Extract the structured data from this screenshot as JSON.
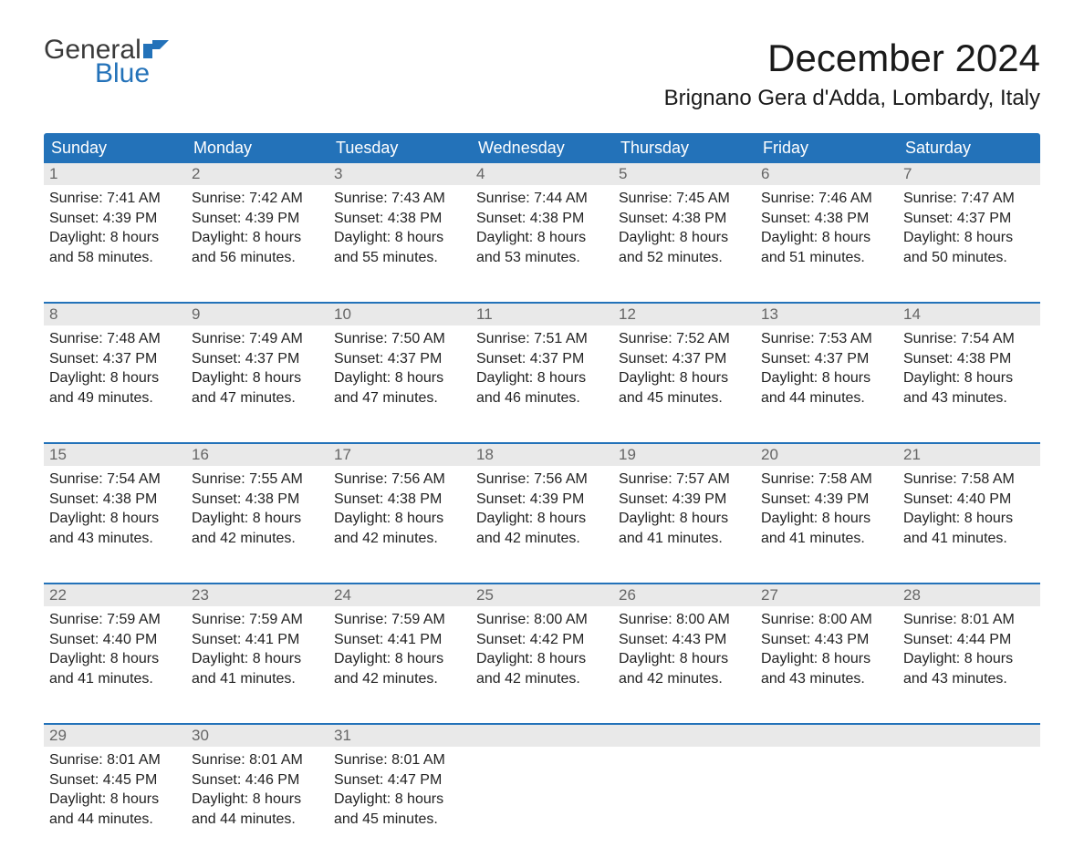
{
  "logo": {
    "general": "General",
    "blue": "Blue"
  },
  "title": "December 2024",
  "location": "Brignano Gera d'Adda, Lombardy, Italy",
  "colors": {
    "header_bg": "#2372b9",
    "header_text": "#ffffff",
    "daynum_bg": "#e9e9e9",
    "daynum_text": "#666666",
    "body_text": "#222222",
    "week_border": "#2372b9",
    "page_bg": "#ffffff",
    "logo_general": "#3a3a3a",
    "logo_blue": "#2372b9"
  },
  "typography": {
    "title_fontsize": 42,
    "location_fontsize": 24,
    "dayhead_fontsize": 18,
    "daynum_fontsize": 17,
    "cell_fontsize": 16,
    "logo_fontsize": 30
  },
  "day_headers": [
    "Sunday",
    "Monday",
    "Tuesday",
    "Wednesday",
    "Thursday",
    "Friday",
    "Saturday"
  ],
  "weeks": [
    [
      {
        "day": "1",
        "sunrise": "Sunrise: 7:41 AM",
        "sunset": "Sunset: 4:39 PM",
        "d1": "Daylight: 8 hours",
        "d2": "and 58 minutes."
      },
      {
        "day": "2",
        "sunrise": "Sunrise: 7:42 AM",
        "sunset": "Sunset: 4:39 PM",
        "d1": "Daylight: 8 hours",
        "d2": "and 56 minutes."
      },
      {
        "day": "3",
        "sunrise": "Sunrise: 7:43 AM",
        "sunset": "Sunset: 4:38 PM",
        "d1": "Daylight: 8 hours",
        "d2": "and 55 minutes."
      },
      {
        "day": "4",
        "sunrise": "Sunrise: 7:44 AM",
        "sunset": "Sunset: 4:38 PM",
        "d1": "Daylight: 8 hours",
        "d2": "and 53 minutes."
      },
      {
        "day": "5",
        "sunrise": "Sunrise: 7:45 AM",
        "sunset": "Sunset: 4:38 PM",
        "d1": "Daylight: 8 hours",
        "d2": "and 52 minutes."
      },
      {
        "day": "6",
        "sunrise": "Sunrise: 7:46 AM",
        "sunset": "Sunset: 4:38 PM",
        "d1": "Daylight: 8 hours",
        "d2": "and 51 minutes."
      },
      {
        "day": "7",
        "sunrise": "Sunrise: 7:47 AM",
        "sunset": "Sunset: 4:37 PM",
        "d1": "Daylight: 8 hours",
        "d2": "and 50 minutes."
      }
    ],
    [
      {
        "day": "8",
        "sunrise": "Sunrise: 7:48 AM",
        "sunset": "Sunset: 4:37 PM",
        "d1": "Daylight: 8 hours",
        "d2": "and 49 minutes."
      },
      {
        "day": "9",
        "sunrise": "Sunrise: 7:49 AM",
        "sunset": "Sunset: 4:37 PM",
        "d1": "Daylight: 8 hours",
        "d2": "and 47 minutes."
      },
      {
        "day": "10",
        "sunrise": "Sunrise: 7:50 AM",
        "sunset": "Sunset: 4:37 PM",
        "d1": "Daylight: 8 hours",
        "d2": "and 47 minutes."
      },
      {
        "day": "11",
        "sunrise": "Sunrise: 7:51 AM",
        "sunset": "Sunset: 4:37 PM",
        "d1": "Daylight: 8 hours",
        "d2": "and 46 minutes."
      },
      {
        "day": "12",
        "sunrise": "Sunrise: 7:52 AM",
        "sunset": "Sunset: 4:37 PM",
        "d1": "Daylight: 8 hours",
        "d2": "and 45 minutes."
      },
      {
        "day": "13",
        "sunrise": "Sunrise: 7:53 AM",
        "sunset": "Sunset: 4:37 PM",
        "d1": "Daylight: 8 hours",
        "d2": "and 44 minutes."
      },
      {
        "day": "14",
        "sunrise": "Sunrise: 7:54 AM",
        "sunset": "Sunset: 4:38 PM",
        "d1": "Daylight: 8 hours",
        "d2": "and 43 minutes."
      }
    ],
    [
      {
        "day": "15",
        "sunrise": "Sunrise: 7:54 AM",
        "sunset": "Sunset: 4:38 PM",
        "d1": "Daylight: 8 hours",
        "d2": "and 43 minutes."
      },
      {
        "day": "16",
        "sunrise": "Sunrise: 7:55 AM",
        "sunset": "Sunset: 4:38 PM",
        "d1": "Daylight: 8 hours",
        "d2": "and 42 minutes."
      },
      {
        "day": "17",
        "sunrise": "Sunrise: 7:56 AM",
        "sunset": "Sunset: 4:38 PM",
        "d1": "Daylight: 8 hours",
        "d2": "and 42 minutes."
      },
      {
        "day": "18",
        "sunrise": "Sunrise: 7:56 AM",
        "sunset": "Sunset: 4:39 PM",
        "d1": "Daylight: 8 hours",
        "d2": "and 42 minutes."
      },
      {
        "day": "19",
        "sunrise": "Sunrise: 7:57 AM",
        "sunset": "Sunset: 4:39 PM",
        "d1": "Daylight: 8 hours",
        "d2": "and 41 minutes."
      },
      {
        "day": "20",
        "sunrise": "Sunrise: 7:58 AM",
        "sunset": "Sunset: 4:39 PM",
        "d1": "Daylight: 8 hours",
        "d2": "and 41 minutes."
      },
      {
        "day": "21",
        "sunrise": "Sunrise: 7:58 AM",
        "sunset": "Sunset: 4:40 PM",
        "d1": "Daylight: 8 hours",
        "d2": "and 41 minutes."
      }
    ],
    [
      {
        "day": "22",
        "sunrise": "Sunrise: 7:59 AM",
        "sunset": "Sunset: 4:40 PM",
        "d1": "Daylight: 8 hours",
        "d2": "and 41 minutes."
      },
      {
        "day": "23",
        "sunrise": "Sunrise: 7:59 AM",
        "sunset": "Sunset: 4:41 PM",
        "d1": "Daylight: 8 hours",
        "d2": "and 41 minutes."
      },
      {
        "day": "24",
        "sunrise": "Sunrise: 7:59 AM",
        "sunset": "Sunset: 4:41 PM",
        "d1": "Daylight: 8 hours",
        "d2": "and 42 minutes."
      },
      {
        "day": "25",
        "sunrise": "Sunrise: 8:00 AM",
        "sunset": "Sunset: 4:42 PM",
        "d1": "Daylight: 8 hours",
        "d2": "and 42 minutes."
      },
      {
        "day": "26",
        "sunrise": "Sunrise: 8:00 AM",
        "sunset": "Sunset: 4:43 PM",
        "d1": "Daylight: 8 hours",
        "d2": "and 42 minutes."
      },
      {
        "day": "27",
        "sunrise": "Sunrise: 8:00 AM",
        "sunset": "Sunset: 4:43 PM",
        "d1": "Daylight: 8 hours",
        "d2": "and 43 minutes."
      },
      {
        "day": "28",
        "sunrise": "Sunrise: 8:01 AM",
        "sunset": "Sunset: 4:44 PM",
        "d1": "Daylight: 8 hours",
        "d2": "and 43 minutes."
      }
    ],
    [
      {
        "day": "29",
        "sunrise": "Sunrise: 8:01 AM",
        "sunset": "Sunset: 4:45 PM",
        "d1": "Daylight: 8 hours",
        "d2": "and 44 minutes."
      },
      {
        "day": "30",
        "sunrise": "Sunrise: 8:01 AM",
        "sunset": "Sunset: 4:46 PM",
        "d1": "Daylight: 8 hours",
        "d2": "and 44 minutes."
      },
      {
        "day": "31",
        "sunrise": "Sunrise: 8:01 AM",
        "sunset": "Sunset: 4:47 PM",
        "d1": "Daylight: 8 hours",
        "d2": "and 45 minutes."
      },
      {
        "day": "",
        "sunrise": "",
        "sunset": "",
        "d1": "",
        "d2": ""
      },
      {
        "day": "",
        "sunrise": "",
        "sunset": "",
        "d1": "",
        "d2": ""
      },
      {
        "day": "",
        "sunrise": "",
        "sunset": "",
        "d1": "",
        "d2": ""
      },
      {
        "day": "",
        "sunrise": "",
        "sunset": "",
        "d1": "",
        "d2": ""
      }
    ]
  ]
}
